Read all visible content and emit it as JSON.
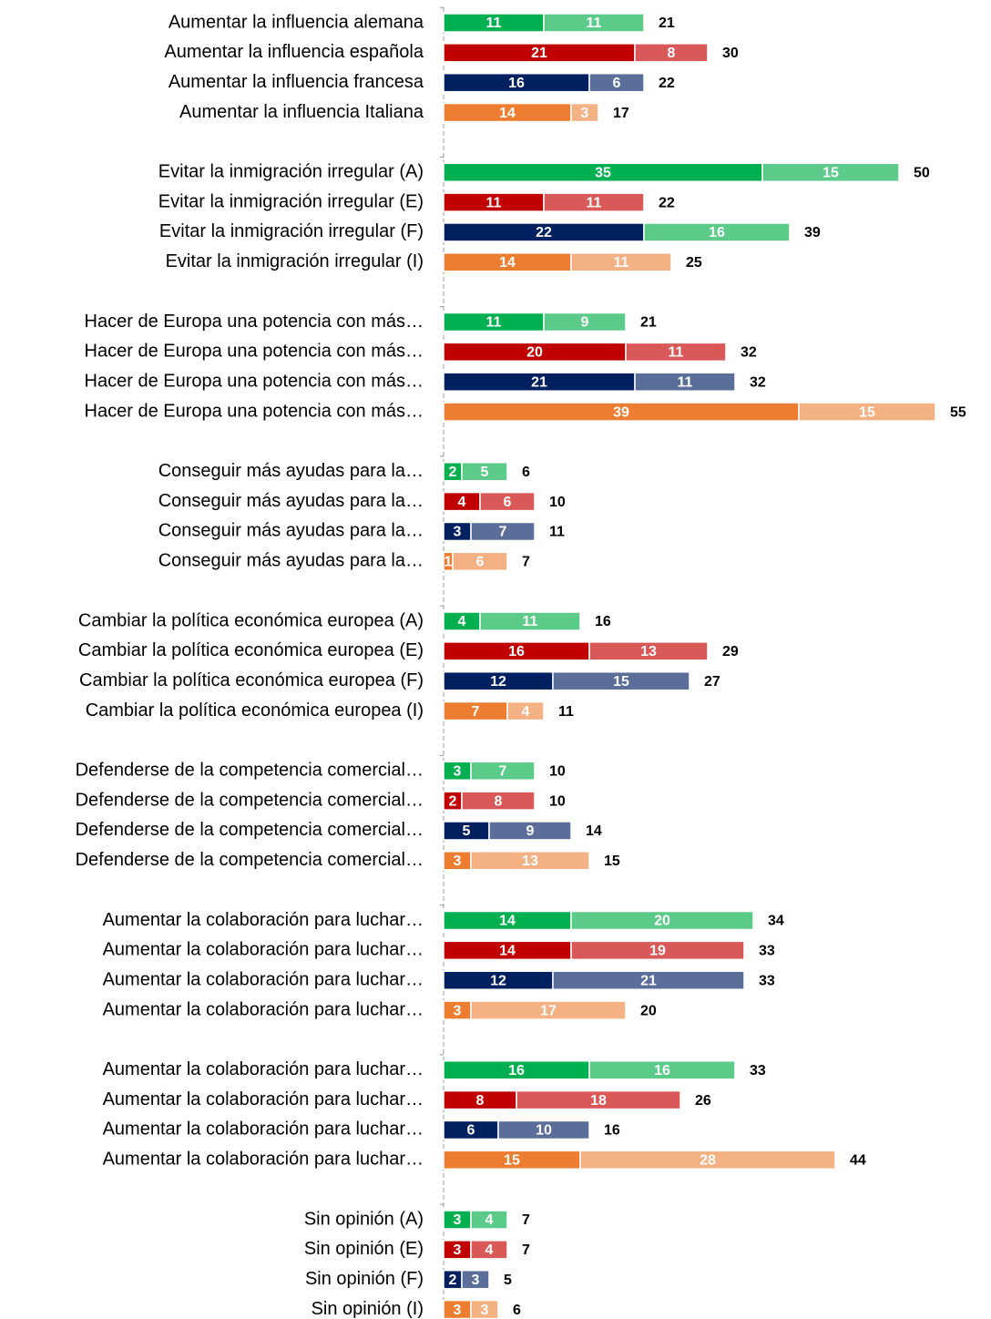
{
  "chart_data": {
    "type": "stacked-bar-horizontal",
    "categories": [
      "Aumentar la influencia alemana",
      "Aumentar la influencia española",
      "Aumentar la influencia francesa",
      "Aumentar la influencia Italiana",
      "Evitar la inmigración irregular (A)",
      "Evitar la inmigración irregular (E)",
      "Evitar la inmigración irregular (F)",
      "Evitar la inmigración irregular (I)",
      "Hacer de Europa una potencia con más…",
      "Hacer de Europa una potencia con más…",
      "Hacer de Europa una potencia con más…",
      "Hacer de Europa una potencia con más…",
      "Conseguir más ayudas para la…",
      "Conseguir más ayudas para la…",
      "Conseguir más ayudas para la…",
      "Conseguir más ayudas para la…",
      "Cambiar la política económica europea (A)",
      "Cambiar la política económica europea (E)",
      "Cambiar la política económica europea (F)",
      "Cambiar la política económica europea (I)",
      "Defenderse de la competencia comercial…",
      "Defenderse de la competencia comercial…",
      "Defenderse de la competencia comercial…",
      "Defenderse de la competencia comercial…",
      "Aumentar la colaboración para luchar…",
      "Aumentar la colaboración para luchar…",
      "Aumentar la colaboración para luchar…",
      "Aumentar la colaboración para luchar…",
      "Aumentar la colaboración para luchar…",
      "Aumentar la colaboración para luchar…",
      "Aumentar la colaboración para luchar…",
      "Aumentar la colaboración para luchar…",
      "Sin opinión (A)",
      "Sin opinión (E)",
      "Sin opinión (F)",
      "Sin opinión (I)"
    ],
    "series": [
      {
        "values": [
          11,
          21,
          16,
          14,
          35,
          11,
          22,
          14,
          11,
          20,
          21,
          39,
          2,
          4,
          3,
          1,
          4,
          16,
          12,
          7,
          3,
          2,
          5,
          3,
          14,
          14,
          12,
          3,
          16,
          8,
          6,
          15,
          3,
          3,
          2,
          3
        ],
        "colors": [
          "#00b050",
          "#c00000",
          "#002060",
          "#ed7d31",
          "#00b050",
          "#c00000",
          "#002060",
          "#ed7d31",
          "#00b050",
          "#c00000",
          "#002060",
          "#ed7d31",
          "#00b050",
          "#c00000",
          "#002060",
          "#ed7d31",
          "#00b050",
          "#c00000",
          "#002060",
          "#ed7d31",
          "#00b050",
          "#c00000",
          "#002060",
          "#ed7d31",
          "#00b050",
          "#c00000",
          "#002060",
          "#ed7d31",
          "#00b050",
          "#c00000",
          "#002060",
          "#ed7d31",
          "#00b050",
          "#c00000",
          "#002060",
          "#ed7d31"
        ]
      },
      {
        "values": [
          11,
          8,
          6,
          3,
          15,
          11,
          16,
          11,
          9,
          11,
          11,
          15,
          5,
          6,
          7,
          6,
          11,
          13,
          15,
          4,
          7,
          8,
          9,
          13,
          20,
          19,
          21,
          17,
          16,
          18,
          10,
          28,
          4,
          4,
          3,
          3
        ],
        "colors": [
          "#5ccb8a",
          "#d95858",
          "#5a6e99",
          "#f4b183",
          "#5ccb8a",
          "#d95858",
          "#5ccb8a",
          "#f4b183",
          "#5ccb8a",
          "#d95858",
          "#5a6e99",
          "#f4b183",
          "#5ccb8a",
          "#d95858",
          "#5a6e99",
          "#f4b183",
          "#5ccb8a",
          "#d95858",
          "#5a6e99",
          "#f4b183",
          "#5ccb8a",
          "#d95858",
          "#5a6e99",
          "#f4b183",
          "#5ccb8a",
          "#d95858",
          "#5a6e99",
          "#f4b183",
          "#5ccb8a",
          "#d95858",
          "#5a6e99",
          "#f4b183",
          "#5ccb8a",
          "#d95858",
          "#5a6e99",
          "#f4b183"
        ]
      }
    ],
    "totals": [
      21,
      30,
      22,
      17,
      50,
      22,
      39,
      25,
      21,
      32,
      32,
      55,
      6,
      10,
      11,
      7,
      16,
      29,
      27,
      11,
      10,
      10,
      14,
      15,
      34,
      33,
      33,
      20,
      33,
      26,
      16,
      44,
      7,
      7,
      5,
      6
    ],
    "xlim": [
      0,
      60
    ]
  }
}
